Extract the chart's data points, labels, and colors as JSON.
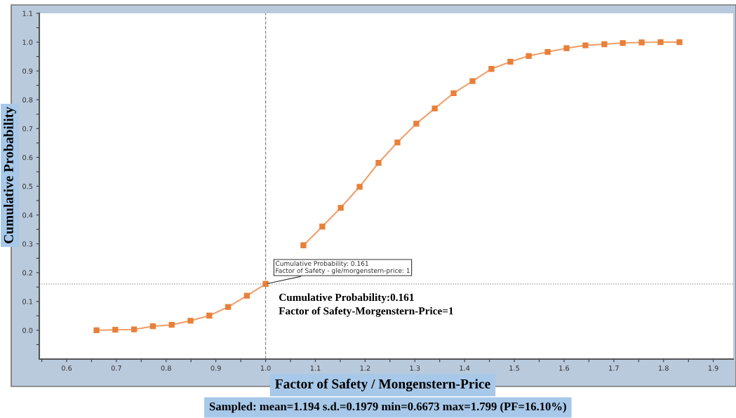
{
  "chart_data": {
    "type": "line",
    "xlabel": "Factor of Safety / Mongenstern-Price",
    "ylabel": "Cumulative Probability",
    "x": [
      0.66,
      0.6978,
      0.7356,
      0.7734,
      0.8112,
      0.849,
      0.8868,
      0.9246,
      0.9624,
      1.0,
      1.038,
      1.076,
      1.114,
      1.151,
      1.189,
      1.227,
      1.265,
      1.303,
      1.34,
      1.378,
      1.416,
      1.454,
      1.492,
      1.529,
      1.567,
      1.605,
      1.643,
      1.681,
      1.718,
      1.756,
      1.794,
      1.832
    ],
    "series": [
      {
        "color": "#e8803a",
        "values": [
          0.0,
          0.002,
          0.003,
          0.014,
          0.019,
          0.033,
          0.051,
          0.081,
          0.12,
          0.161,
          null,
          0.295,
          0.36,
          0.425,
          0.498,
          0.581,
          0.652,
          0.717,
          0.77,
          0.823,
          0.865,
          0.907,
          0.932,
          0.952,
          0.966,
          0.979,
          0.989,
          0.993,
          0.997,
          0.999,
          1.0,
          1.0
        ]
      }
    ],
    "marker": "square",
    "line_style": "solid",
    "grid": false,
    "legend": false,
    "xlim": [
      0.545,
      1.94
    ],
    "xticks": [
      {
        "value": 0.55,
        "label": null
      },
      0.6,
      {
        "value": 0.65,
        "label": null
      },
      0.7,
      {
        "value": 0.75,
        "label": null
      },
      0.8,
      {
        "value": 0.85,
        "label": null
      },
      0.9,
      {
        "value": 0.95,
        "label": null
      },
      {
        "value": 1.0,
        "label": "1.0"
      },
      {
        "value": 1.05,
        "label": null
      },
      1.1,
      {
        "value": 1.15,
        "label": null
      },
      1.2,
      {
        "value": 1.25,
        "label": null
      },
      1.3,
      {
        "value": 1.35,
        "label": null
      },
      1.4,
      {
        "value": 1.45,
        "label": null
      },
      1.5,
      {
        "value": 1.55,
        "label": null
      },
      1.6,
      {
        "value": 1.65,
        "label": null
      },
      1.7,
      {
        "value": 1.75,
        "label": null
      },
      1.8,
      {
        "value": 1.85,
        "label": null
      },
      1.9
    ],
    "ylim": [
      -0.1,
      1.1
    ],
    "yticks": [
      {
        "value": -0.05,
        "label": null
      },
      {
        "value": 0.0,
        "label": "0.0"
      },
      {
        "value": 0.05,
        "label": null
      },
      0.1,
      {
        "value": 0.15,
        "label": null
      },
      0.2,
      {
        "value": 0.25,
        "label": null
      },
      0.3,
      {
        "value": 0.35,
        "label": null
      },
      0.4,
      {
        "value": 0.45,
        "label": null
      },
      0.5,
      {
        "value": 0.55,
        "label": null
      },
      0.6,
      {
        "value": 0.65,
        "label": null
      },
      0.7,
      {
        "value": 0.75,
        "label": null
      },
      0.8,
      {
        "value": 0.85,
        "label": null
      },
      0.9,
      {
        "value": 0.95,
        "label": null
      },
      {
        "value": 1.0,
        "label": "1.0"
      },
      {
        "value": 1.05,
        "label": null
      },
      1.1
    ],
    "ref_lines": [
      {
        "axis": "x",
        "value": 1.0,
        "color": "#888888",
        "line_style": "dashed"
      },
      {
        "axis": "y",
        "value": 0.161,
        "color": "#888888",
        "line_style": "dotted"
      }
    ],
    "annotations": [
      {
        "text": "Cumulative Probability: 0.161\nFactor of Safety - gle/morgenstern-price: 1",
        "x": 1.0,
        "y": 0.161
      },
      "Cumulative Probability:0.161\nFactor of Safety-Morgenstern-Price=1",
      "Sampled: mean=1.194 s.d.=0.1979 min=0.6673 max=1.799 (PF=16.10%)"
    ]
  }
}
